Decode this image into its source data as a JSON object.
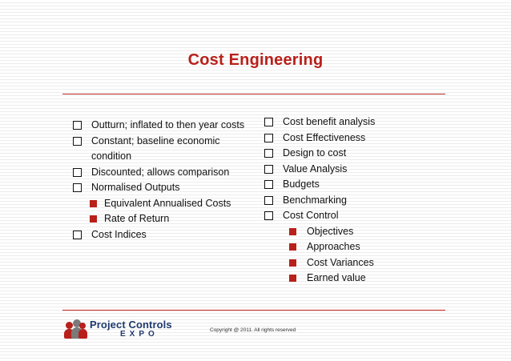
{
  "slide": {
    "title": "Cost Engineering",
    "left_items": [
      {
        "text": "Outturn; inflated to then year costs",
        "subs": []
      },
      {
        "text": "Constant; baseline economic condition",
        "subs": []
      },
      {
        "text": "Discounted;  allows comparison",
        "subs": []
      },
      {
        "text": "Normalised Outputs",
        "subs": [
          "Equivalent Annualised Costs",
          "Rate of Return"
        ]
      },
      {
        "text": "Cost Indices",
        "subs": []
      }
    ],
    "right_items": [
      {
        "text": "Cost benefit analysis",
        "subs": []
      },
      {
        "text": "Cost Effectiveness",
        "subs": []
      },
      {
        "text": "Design to cost",
        "subs": []
      },
      {
        "text": "Value Analysis",
        "subs": []
      },
      {
        "text": "Budgets",
        "subs": []
      },
      {
        "text": "Benchmarking",
        "subs": []
      },
      {
        "text": "Cost Control",
        "subs": [
          "Objectives",
          "Approaches",
          "Cost Variances",
          "Earned value"
        ]
      }
    ]
  },
  "footer": {
    "logo_name": "Project Controls",
    "logo_sub": "EXPO",
    "copyright": "Copyright @ 2011. All rights reserved"
  },
  "colors": {
    "accent": "#b8201a",
    "logo_text": "#1f3a6e"
  }
}
